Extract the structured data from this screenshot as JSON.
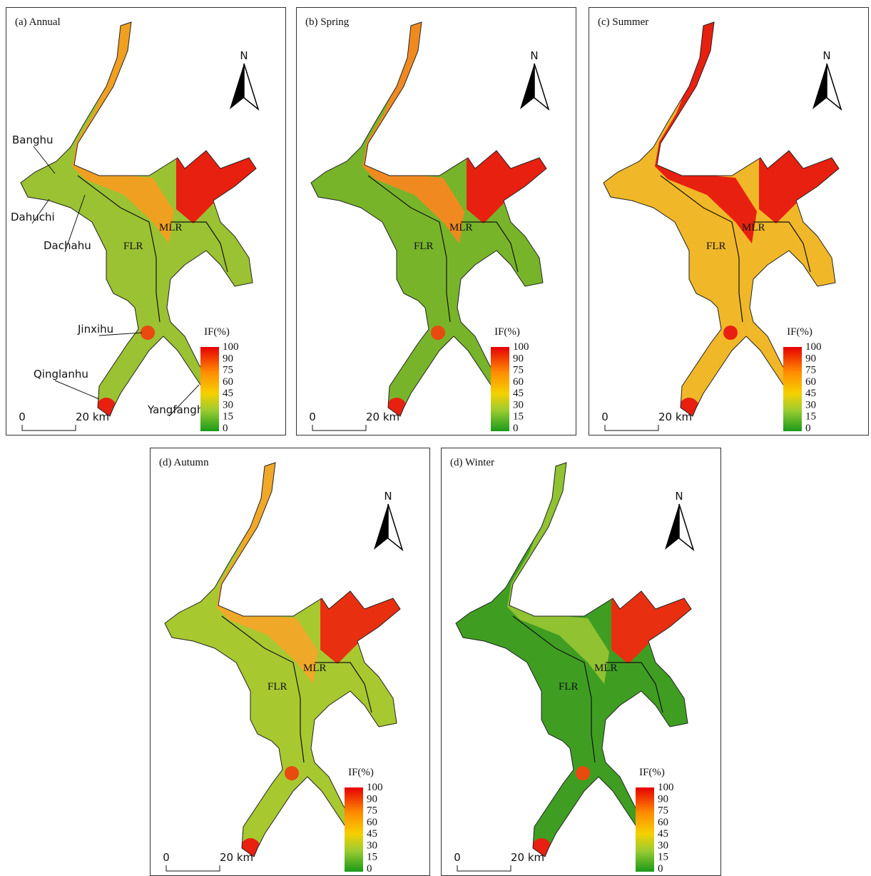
{
  "panels": [
    {
      "title": "(a) Annual",
      "north": "N",
      "regions": [
        "FLR",
        "MLR"
      ],
      "lakes": [
        "Banghu",
        "Dahuchi",
        "Dachahu",
        "Jinxihu",
        "Qinglanhu",
        "Yangfanghu"
      ],
      "legend": {
        "title": "IF(%)",
        "ticks": [
          100,
          90,
          75,
          60,
          45,
          30,
          15,
          0
        ]
      },
      "scale": [
        "0",
        "20 km"
      ]
    },
    {
      "title": "(b) Spring",
      "north": "N",
      "regions": [
        "FLR",
        "MLR"
      ],
      "legend": {
        "title": "IF(%)",
        "ticks": [
          100,
          90,
          75,
          60,
          45,
          30,
          15,
          0
        ]
      },
      "scale": [
        "0",
        "20 km"
      ]
    },
    {
      "title": "(c) Summer",
      "north": "N",
      "regions": [
        "FLR",
        "MLR"
      ],
      "legend": {
        "title": "IF(%)",
        "ticks": [
          100,
          90,
          75,
          60,
          45,
          30,
          15,
          0
        ]
      },
      "scale": [
        "0",
        "20 km"
      ]
    },
    {
      "title": "(d) Autumn",
      "north": "N",
      "regions": [
        "FLR",
        "MLR"
      ],
      "legend": {
        "title": "IF(%)",
        "ticks": [
          100,
          90,
          75,
          60,
          45,
          30,
          15,
          0
        ]
      },
      "scale": [
        "0",
        "20 km"
      ]
    },
    {
      "title": "(d) Winter",
      "north": "N",
      "regions": [
        "FLR",
        "MLR"
      ],
      "legend": {
        "title": "IF(%)",
        "ticks": [
          100,
          90,
          75,
          60,
          45,
          30,
          15,
          0
        ]
      },
      "scale": [
        "0",
        "20 km"
      ]
    }
  ]
}
